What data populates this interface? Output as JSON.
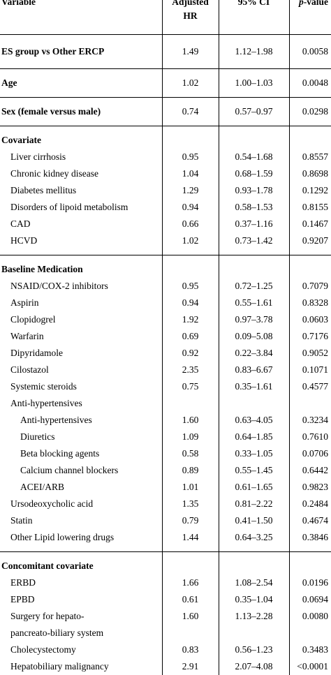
{
  "header": {
    "variable": "Variable",
    "hr": "Adjusted",
    "hr_line2": "HR",
    "ci": "95% CI",
    "p_italic": "p",
    "p_rest": "-value"
  },
  "rows": {
    "es": {
      "label": "ES group vs Other ERCP",
      "hr": "1.49",
      "ci": "1.12–1.98",
      "p": "0.0058"
    },
    "age": {
      "label": "Age",
      "hr": "1.02",
      "ci": "1.00–1.03",
      "p": "0.0048"
    },
    "sex": {
      "label": "Sex (female versus male)",
      "hr": "0.74",
      "ci": "0.57–0.97",
      "p": "0.0298"
    },
    "covariate": {
      "label": "Covariate"
    },
    "cov1": {
      "label": "Liver cirrhosis",
      "hr": "0.95",
      "ci": "0.54–1.68",
      "p": "0.8557"
    },
    "cov2": {
      "label": "Chronic kidney disease",
      "hr": "1.04",
      "ci": "0.68–1.59",
      "p": "0.8698"
    },
    "cov3": {
      "label": "Diabetes mellitus",
      "hr": "1.29",
      "ci": "0.93–1.78",
      "p": "0.1292"
    },
    "cov4": {
      "label": "Disorders of lipoid metabolism",
      "hr": "0.94",
      "ci": "0.58–1.53",
      "p": "0.8155"
    },
    "cov5": {
      "label": "CAD",
      "hr": "0.66",
      "ci": "0.37–1.16",
      "p": "0.1467"
    },
    "cov6": {
      "label": "HCVD",
      "hr": "1.02",
      "ci": "0.73–1.42",
      "p": "0.9207"
    },
    "baseline": {
      "label": "Baseline Medication"
    },
    "med1": {
      "label": "NSAID/COX-2 inhibitors",
      "hr": "0.95",
      "ci": "0.72–1.25",
      "p": "0.7079"
    },
    "med2": {
      "label": "Aspirin",
      "hr": "0.94",
      "ci": "0.55–1.61",
      "p": "0.8328"
    },
    "med3": {
      "label": "Clopidogrel",
      "hr": "1.92",
      "ci": "0.97–3.78",
      "p": "0.0603"
    },
    "med4": {
      "label": "Warfarin",
      "hr": "0.69",
      "ci": "0.09–5.08",
      "p": "0.7176"
    },
    "med5": {
      "label": "Dipyridamole",
      "hr": "0.92",
      "ci": "0.22–3.84",
      "p": "0.9052"
    },
    "med6": {
      "label": "Cilostazol",
      "hr": "2.35",
      "ci": "0.83–6.67",
      "p": "0.1071"
    },
    "med7": {
      "label": "Systemic steroids",
      "hr": "0.75",
      "ci": "0.35–1.61",
      "p": "0.4577"
    },
    "antihyp": {
      "label": "Anti-hypertensives"
    },
    "ah1": {
      "label": "Anti-hypertensives",
      "hr": "1.60",
      "ci": "0.63–4.05",
      "p": "0.3234"
    },
    "ah2": {
      "label": "Diuretics",
      "hr": "1.09",
      "ci": "0.64–1.85",
      "p": "0.7610"
    },
    "ah3": {
      "label": "Beta blocking agents",
      "hr": "0.58",
      "ci": "0.33–1.05",
      "p": "0.0706"
    },
    "ah4": {
      "label": "Calcium channel blockers",
      "hr": "0.89",
      "ci": "0.55–1.45",
      "p": "0.6442"
    },
    "ah5": {
      "label": "ACEI/ARB",
      "hr": "1.01",
      "ci": "0.61–1.65",
      "p": "0.9823"
    },
    "med8": {
      "label": "Ursodeoxycholic acid",
      "hr": "1.35",
      "ci": "0.81–2.22",
      "p": "0.2484"
    },
    "med9": {
      "label": "Statin",
      "hr": "0.79",
      "ci": "0.41–1.50",
      "p": "0.4674"
    },
    "med10": {
      "label": "Other Lipid lowering drugs",
      "hr": "1.44",
      "ci": "0.64–3.25",
      "p": "0.3846"
    },
    "concomitant": {
      "label": "Concomitant covariate"
    },
    "cc1": {
      "label": "ERBD",
      "hr": "1.66",
      "ci": "1.08–2.54",
      "p": "0.0196"
    },
    "cc2": {
      "label": "EPBD",
      "hr": "0.61",
      "ci": "0.35–1.04",
      "p": "0.0694"
    },
    "cc3": {
      "label": "Surgery for hepato-",
      "label_line2": "pancreato-biliary system",
      "hr": "1.60",
      "ci": "1.13–2.28",
      "p": "0.0080"
    },
    "cc4": {
      "label": "Cholecystectomy",
      "hr": "0.83",
      "ci": "0.56–1.23",
      "p": "0.3483"
    },
    "cc5": {
      "label": "Hepatobiliary malignancy",
      "hr": "2.91",
      "ci": "2.07–4.08",
      "p": "<0.0001"
    }
  }
}
